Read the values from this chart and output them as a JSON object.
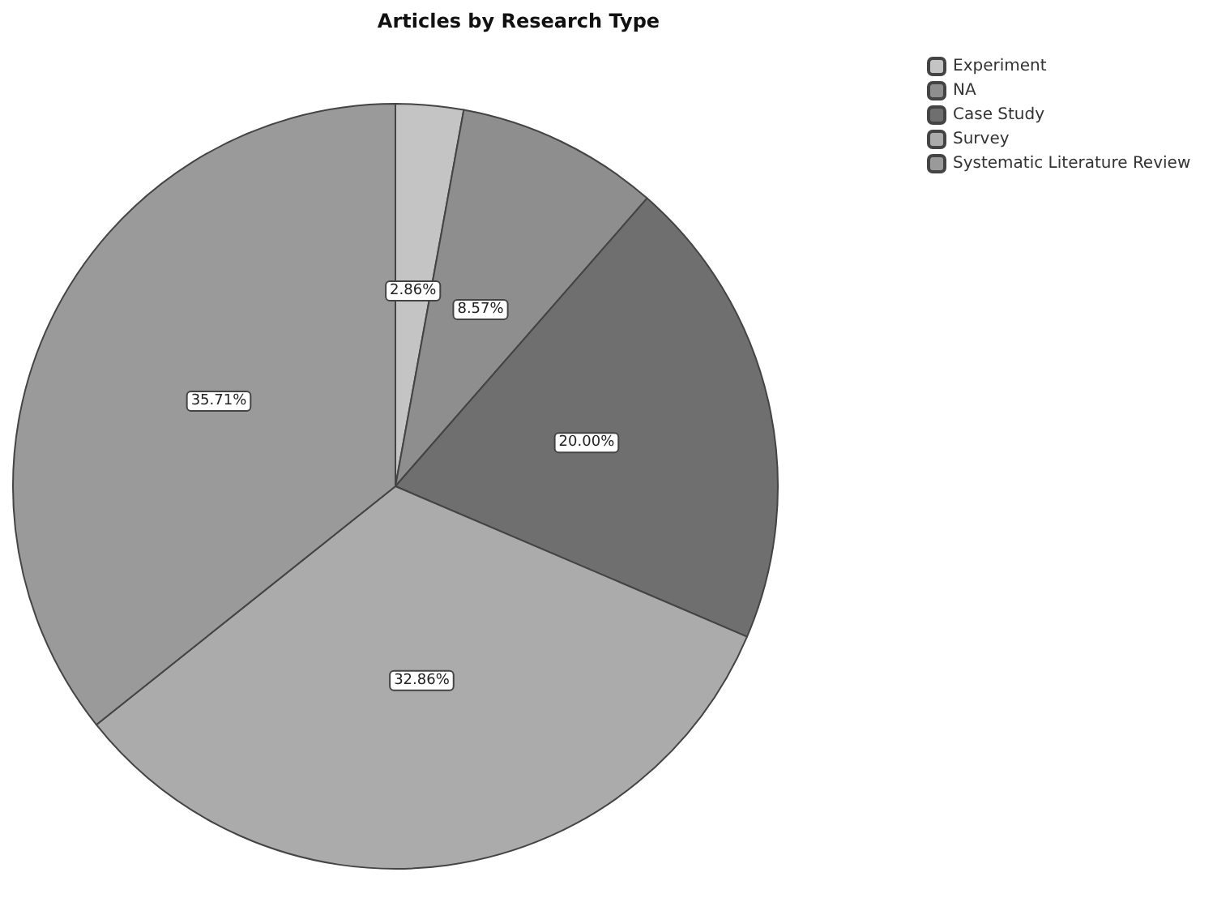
{
  "chart_data": {
    "type": "pie",
    "title": "Articles by Research Type",
    "categories": [
      "Experiment",
      "NA",
      "Case Study",
      "Survey",
      "Systematic Literature Review"
    ],
    "values": [
      2.86,
      8.57,
      20.0,
      32.86,
      35.71
    ],
    "colors": [
      "#c4c4c4",
      "#8e8e8e",
      "#6f6f6f",
      "#ababab",
      "#9a9a9a"
    ],
    "value_labels": [
      "2.86%",
      "8.57%",
      "20.00%",
      "32.86%",
      "35.71%"
    ],
    "legend": "top right"
  }
}
